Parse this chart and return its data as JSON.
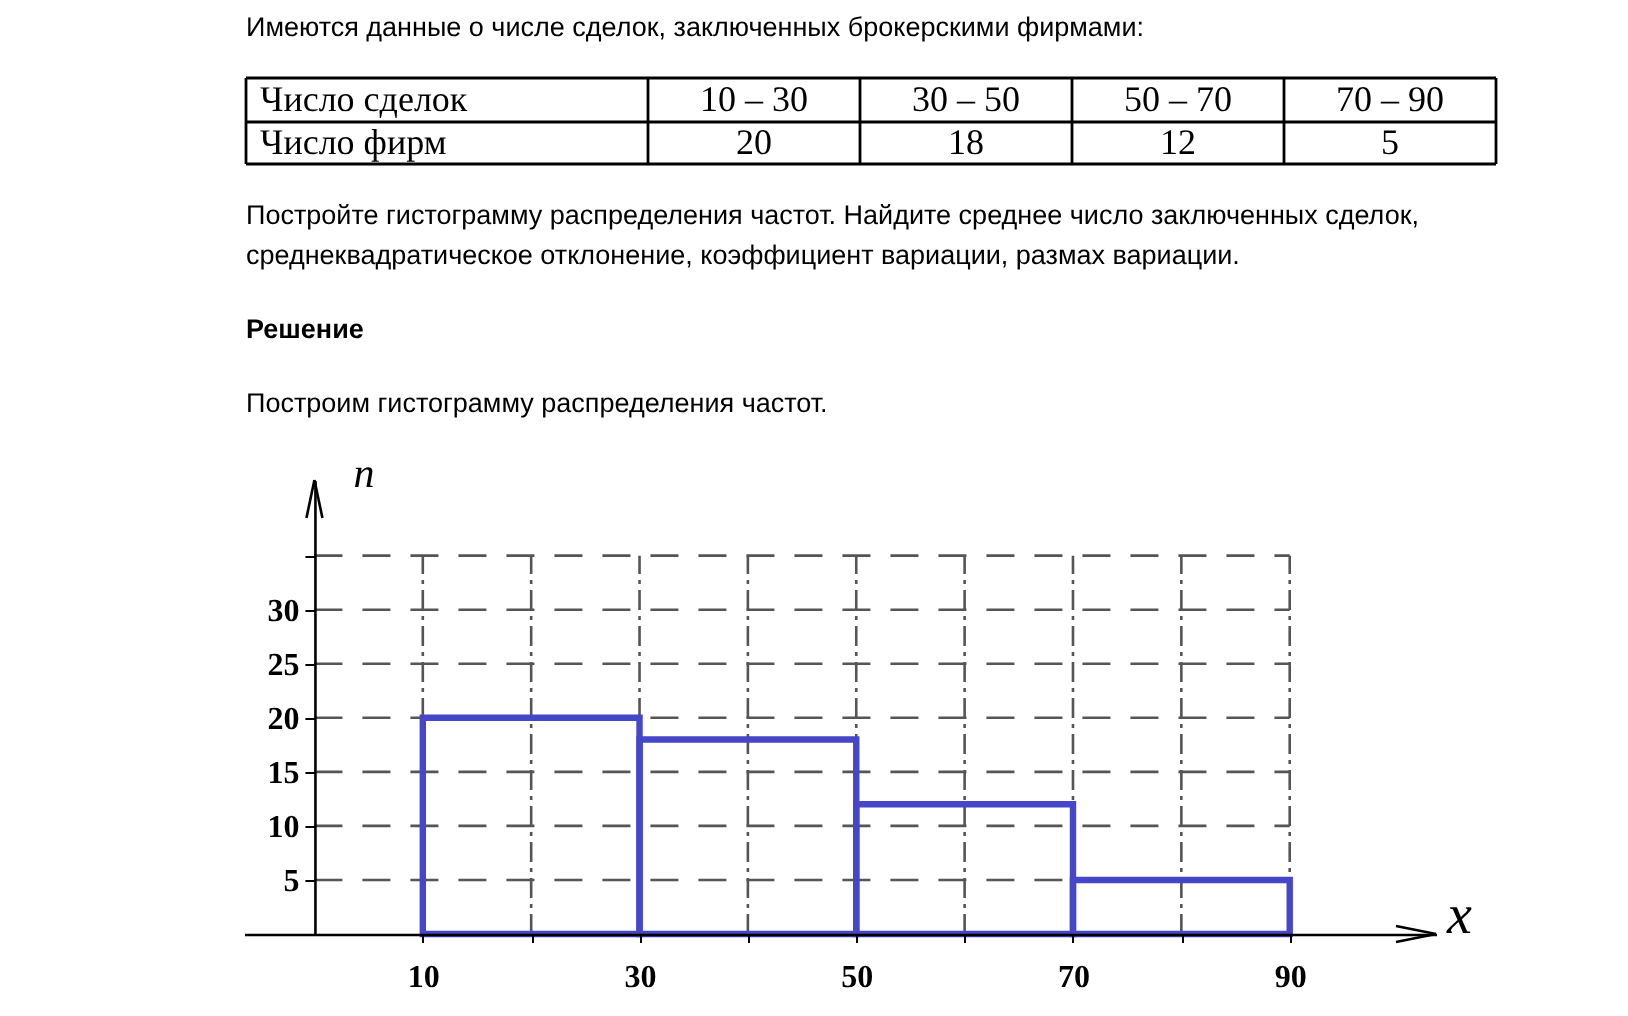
{
  "chart_data": {
    "type": "histogram",
    "bins": [
      10,
      30,
      50,
      70,
      90
    ],
    "values": [
      20,
      18,
      12,
      5
    ],
    "color": "#4646c8",
    "xlabel": "x",
    "ylabel": "n",
    "xlim": [
      -6.5,
      103.5
    ],
    "ylim": [
      0,
      42
    ],
    "xticks": [
      10,
      {
        "value": 20,
        "label": null
      },
      30,
      {
        "value": 40,
        "label": null
      },
      50,
      {
        "value": 60,
        "label": null
      },
      70,
      {
        "value": 80,
        "label": null
      },
      90
    ],
    "yticks": [
      5,
      10,
      15,
      20,
      25,
      30,
      {
        "value": 35,
        "label": null
      }
    ],
    "grid": true,
    "annotations": [
      "Имеются данные о числе сделок, заключенных брокерскими фирмами:",
      "Число сделок",
      "10 – 30",
      "30 – 50",
      "50 – 70",
      "70 – 90",
      "Число фирм",
      "20",
      "18",
      "12",
      "5",
      "Постройте гистограмму распределения частот. Найдите среднее число заключенных сделок, среднеквадратическое отклонение, коэффициент вариации, размах вариации.",
      "Решение",
      "Построим гистограмму распределения частот."
    ]
  }
}
